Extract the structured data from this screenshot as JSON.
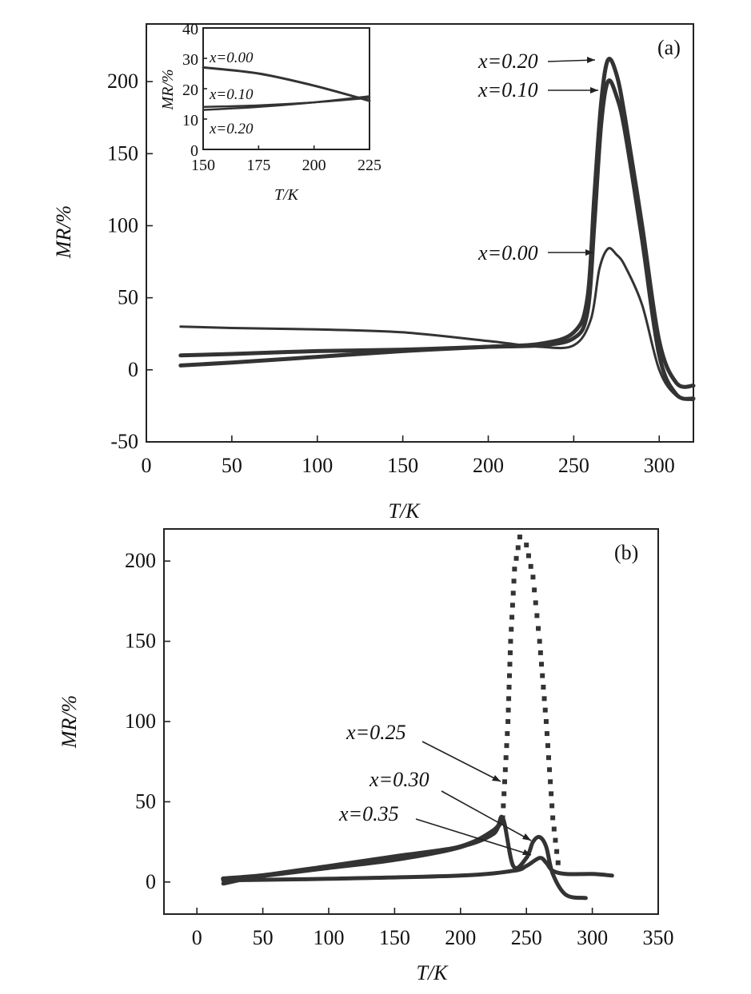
{
  "chart_data": [
    {
      "type": "line",
      "panel_label": "(a)",
      "xlabel": "T/K",
      "ylabel": "MR/%",
      "xlim": [
        0,
        320
      ],
      "ylim": [
        -50,
        240
      ],
      "xticks": [
        0,
        50,
        100,
        150,
        200,
        250,
        300
      ],
      "yticks": [
        -50,
        0,
        50,
        100,
        150,
        200
      ],
      "series": [
        {
          "name": "x=0.00",
          "x": [
            20,
            50,
            100,
            150,
            200,
            230,
            250,
            260,
            265,
            270,
            275,
            280,
            290,
            300,
            310,
            320
          ],
          "y": [
            30,
            29,
            28,
            26,
            20,
            16,
            17,
            35,
            70,
            84,
            80,
            72,
            45,
            0,
            -18,
            -21
          ]
        },
        {
          "name": "x=0.10",
          "x": [
            20,
            50,
            100,
            150,
            200,
            230,
            250,
            258,
            262,
            266,
            270,
            275,
            280,
            290,
            300,
            310,
            320
          ],
          "y": [
            10,
            11,
            13,
            14,
            16,
            17,
            22,
            40,
            100,
            170,
            200,
            190,
            165,
            90,
            10,
            -17,
            -20
          ]
        },
        {
          "name": "x=0.20",
          "x": [
            20,
            50,
            100,
            150,
            200,
            230,
            250,
            258,
            262,
            266,
            270,
            275,
            280,
            290,
            300,
            310,
            320
          ],
          "y": [
            3,
            5,
            9,
            13,
            16,
            18,
            26,
            50,
            120,
            185,
            215,
            205,
            175,
            100,
            20,
            -9,
            -11
          ]
        }
      ],
      "annotations": [
        "x=0.20",
        "x=0.10",
        "x=0.00"
      ],
      "inset": {
        "type": "line",
        "xlabel": "T/K",
        "ylabel": "MR/%",
        "xlim": [
          150,
          225
        ],
        "ylim": [
          0,
          40
        ],
        "xticks": [
          150,
          175,
          200,
          225
        ],
        "yticks": [
          0,
          10,
          20,
          30,
          40
        ],
        "series": [
          {
            "name": "x=0.00",
            "x": [
              150,
              175,
              200,
              225
            ],
            "y": [
              27,
              25,
              21,
              16
            ]
          },
          {
            "name": "x=0.10",
            "x": [
              150,
              175,
              200,
              225
            ],
            "y": [
              14,
              14.5,
              15.5,
              17
            ]
          },
          {
            "name": "x=0.20",
            "x": [
              150,
              175,
              200,
              225
            ],
            "y": [
              13,
              14,
              15.5,
              17.5
            ]
          }
        ]
      }
    },
    {
      "type": "scatter",
      "panel_label": "(b)",
      "xlabel": "T/K",
      "ylabel": "MR/%",
      "xlim": [
        -25,
        350
      ],
      "ylim": [
        -20,
        220
      ],
      "xticks": [
        0,
        50,
        100,
        150,
        200,
        250,
        300,
        350
      ],
      "yticks": [
        0,
        50,
        100,
        150,
        200
      ],
      "series": [
        {
          "name": "x=0.25",
          "x": [
            20,
            50,
            100,
            150,
            200,
            225,
            232,
            236,
            238,
            241,
            245,
            250,
            255,
            260,
            265,
            270,
            275
          ],
          "y": [
            2,
            4,
            9,
            14,
            22,
            32,
            40,
            100,
            150,
            195,
            215,
            210,
            190,
            150,
            100,
            40,
            5
          ]
        },
        {
          "name": "x=0.30",
          "x": [
            20,
            50,
            100,
            150,
            200,
            225,
            232,
            240,
            250,
            255,
            260,
            265,
            270,
            280,
            295
          ],
          "y": [
            -1,
            4,
            10,
            16,
            22,
            30,
            40,
            10,
            15,
            25,
            28,
            22,
            5,
            -8,
            -10
          ]
        },
        {
          "name": "x=0.35",
          "x": [
            20,
            100,
            200,
            240,
            250,
            260,
            265,
            270,
            280,
            300,
            315
          ],
          "y": [
            1,
            2,
            4,
            7,
            10,
            15,
            12,
            7,
            5,
            5,
            4
          ]
        }
      ],
      "annotations": [
        "x=0.25",
        "x=0.30",
        "x=0.35"
      ]
    }
  ]
}
